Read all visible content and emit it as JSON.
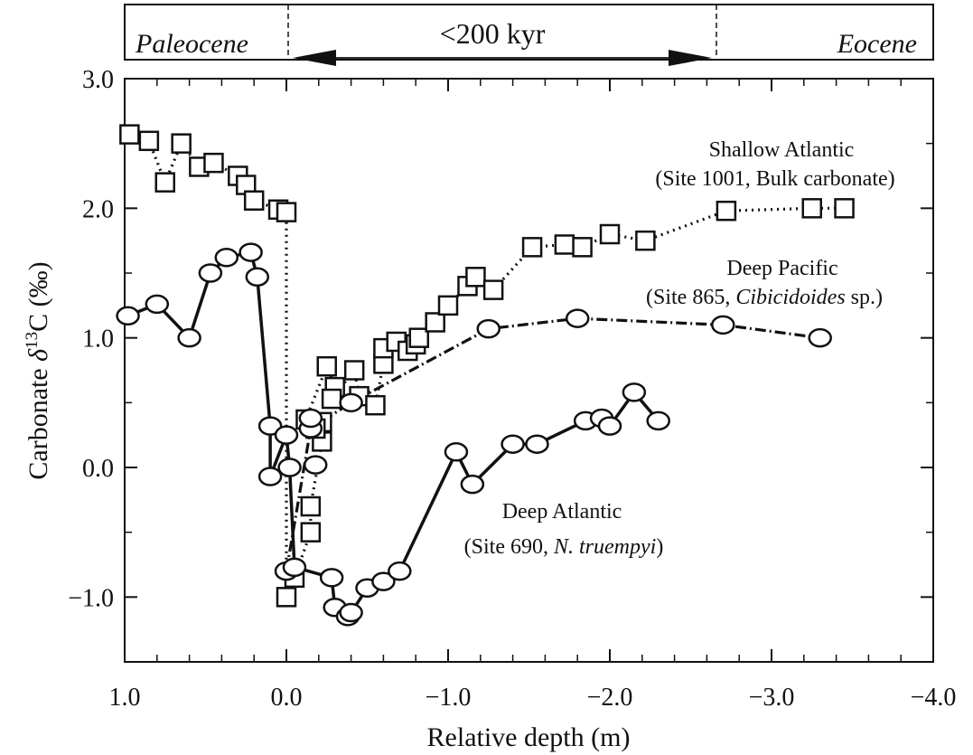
{
  "chart_data": {
    "type": "scatter",
    "title": "",
    "xlabel": "Relative depth (m)",
    "ylabel_main": "Carbonate ",
    "ylabel_delta": "δ",
    "ylabel_sup": "13",
    "ylabel_tail": "C (‰)",
    "xlim": [
      1.0,
      -4.0
    ],
    "ylim": [
      -1.5,
      3.0
    ],
    "x_reversed": true,
    "grid": false,
    "x_ticks": [
      1.0,
      0.0,
      -1.0,
      -2.0,
      -3.0,
      -4.0
    ],
    "x_tick_labels": [
      "1.0",
      "0.0",
      "−1.0",
      "−2.0",
      "−3.0",
      "−4.0"
    ],
    "y_ticks": [
      3.0,
      2.0,
      1.0,
      0.0,
      -1.0
    ],
    "y_tick_labels": [
      "3.0",
      "2.0",
      "1.0",
      "0.0",
      "−1.0"
    ],
    "top_band": {
      "left_label": "Paleocene",
      "right_label": "Eocene",
      "interval_label": "<200 kyr",
      "interval_start": 0.0,
      "interval_end": -2.6
    },
    "series": [
      {
        "name": "Shallow Atlantic",
        "label_line1": "Shallow Atlantic",
        "label_line2": "(Site 1001, Bulk carbonate)",
        "marker": "square",
        "line": "dotted",
        "x": [
          0.97,
          0.85,
          0.75,
          0.65,
          0.54,
          0.45,
          0.3,
          0.25,
          0.2,
          0.05,
          0.0,
          0.0,
          -0.05,
          -0.15,
          -0.15,
          -0.22,
          -0.22,
          -0.18,
          -0.12,
          -0.25,
          -0.3,
          -0.28,
          -0.42,
          -0.45,
          -0.55,
          -0.6,
          -0.6,
          -0.68,
          -0.75,
          -0.8,
          -0.82,
          -0.92,
          -1.0,
          -1.12,
          -1.17,
          -1.28,
          -1.52,
          -1.72,
          -1.83,
          -2.0,
          -2.22,
          -2.72,
          -3.25,
          -3.45
        ],
        "y": [
          2.57,
          2.52,
          2.2,
          2.5,
          2.32,
          2.35,
          2.25,
          2.18,
          2.06,
          1.99,
          1.97,
          -1.0,
          -0.85,
          -0.5,
          -0.3,
          0.2,
          0.35,
          0.3,
          0.37,
          0.78,
          0.62,
          0.53,
          0.75,
          0.55,
          0.48,
          0.8,
          0.92,
          0.97,
          0.9,
          0.95,
          1.0,
          1.12,
          1.25,
          1.4,
          1.47,
          1.37,
          1.7,
          1.72,
          1.7,
          1.8,
          1.75,
          1.98,
          2.0,
          2.0
        ]
      },
      {
        "name": "Deep Pacific",
        "label_line1": "Deep Pacific",
        "label_prefix2": "(Site 865, ",
        "label_italic2": "Cibicidoides",
        "label_suffix2": " sp.)",
        "marker": "circle",
        "line": "dash-dot",
        "x": [
          0.0,
          -0.15,
          -0.4,
          -1.25,
          -1.8,
          -2.7,
          -3.3
        ],
        "y": [
          -0.8,
          0.3,
          0.5,
          1.07,
          1.15,
          1.1,
          1.0
        ]
      },
      {
        "name": "Deep Atlantic",
        "label_line1": "Deep Atlantic",
        "label_prefix2": "(Site 690, ",
        "label_italic2": "N. truempyi",
        "label_suffix2": ")",
        "marker": "circle",
        "line": "solid",
        "x": [
          0.98,
          0.8,
          0.6,
          0.47,
          0.37,
          0.22,
          0.18,
          0.1,
          0.1,
          0.0,
          -0.02,
          -0.05,
          -0.28,
          -0.3,
          -0.38,
          -0.4,
          -0.5,
          -0.6,
          -0.7,
          -1.05,
          -1.15,
          -1.4,
          -1.55,
          -1.85,
          -1.95,
          -2.0,
          -2.15,
          -2.3
        ],
        "y": [
          1.17,
          1.26,
          1.0,
          1.5,
          1.62,
          1.66,
          1.47,
          0.32,
          -0.07,
          0.25,
          0.0,
          -0.77,
          -0.85,
          -1.08,
          -1.15,
          -1.12,
          -0.93,
          -0.88,
          -0.8,
          0.12,
          -0.13,
          0.18,
          0.18,
          0.36,
          0.38,
          0.32,
          0.58,
          0.36
        ]
      }
    ],
    "extra_markers": [
      {
        "marker": "circle",
        "x": -0.15,
        "y": 0.38
      },
      {
        "marker": "circle",
        "x": -0.18,
        "y": 0.02
      }
    ]
  }
}
